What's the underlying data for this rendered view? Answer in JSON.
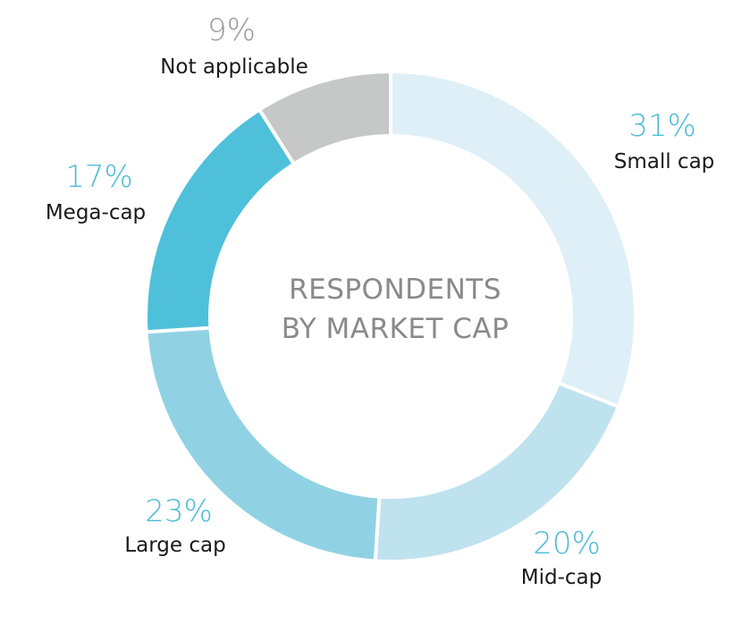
{
  "chart_data": {
    "type": "pie",
    "variant": "donut",
    "title": "RESPONDENTS BY MARKET CAP",
    "title_lines": [
      "RESPONDENTS",
      "BY MARKET CAP"
    ],
    "unit": "%",
    "slices": [
      {
        "label": "Small cap",
        "value": 31,
        "display": "31%",
        "color": "#dfeff7",
        "pct_color": "#4cbcd6"
      },
      {
        "label": "Mid-cap",
        "value": 20,
        "display": "20%",
        "color": "#bfe2ef",
        "pct_color": "#4cbcd6"
      },
      {
        "label": "Large cap",
        "value": 23,
        "display": "23%",
        "color": "#90d2e4",
        "pct_color": "#4cbcd6"
      },
      {
        "label": "Mega-cap",
        "value": 17,
        "display": "17%",
        "color": "#4fc0da",
        "pct_color": "#4cbcd6"
      },
      {
        "label": "Not applicable",
        "value": 9,
        "display": "9%",
        "color": "#c6c8c8",
        "pct_color": "#9a9a9a"
      }
    ]
  }
}
